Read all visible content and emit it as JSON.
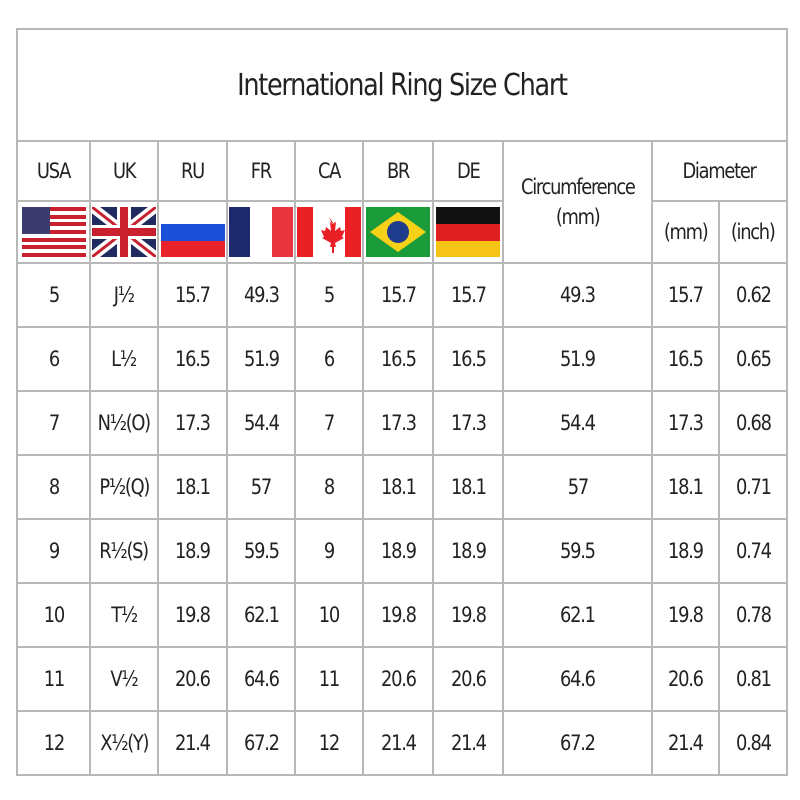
{
  "title": "International Ring Size Chart",
  "columns": {
    "usa": "USA",
    "uk": "UK",
    "ru": "RU",
    "fr": "FR",
    "ca": "CA",
    "br": "BR",
    "de": "DE",
    "circumference": "Circumference",
    "circumference_unit": "(mm)",
    "diameter": "Diameter",
    "diameter_mm": "(mm)",
    "diameter_inch": "(inch)"
  },
  "flags": [
    "usa-flag-icon",
    "uk-flag-icon",
    "russia-flag-icon",
    "france-flag-icon",
    "canada-flag-icon",
    "brazil-flag-icon",
    "germany-flag-icon"
  ],
  "rows": [
    [
      "5",
      "J½",
      "15.7",
      "49.3",
      "5",
      "15.7",
      "15.7",
      "49.3",
      "15.7",
      "0.62"
    ],
    [
      "6",
      "L½",
      "16.5",
      "51.9",
      "6",
      "16.5",
      "16.5",
      "51.9",
      "16.5",
      "0.65"
    ],
    [
      "7",
      "N½(O)",
      "17.3",
      "54.4",
      "7",
      "17.3",
      "17.3",
      "54.4",
      "17.3",
      "0.68"
    ],
    [
      "8",
      "P½(Q)",
      "18.1",
      "57",
      "8",
      "18.1",
      "18.1",
      "57",
      "18.1",
      "0.71"
    ],
    [
      "9",
      "R½(S)",
      "18.9",
      "59.5",
      "9",
      "18.9",
      "18.9",
      "59.5",
      "18.9",
      "0.74"
    ],
    [
      "10",
      "T½",
      "19.8",
      "62.1",
      "10",
      "19.8",
      "19.8",
      "62.1",
      "19.8",
      "0.78"
    ],
    [
      "11",
      "V½",
      "20.6",
      "64.6",
      "11",
      "20.6",
      "20.6",
      "64.6",
      "20.6",
      "0.81"
    ],
    [
      "12",
      "X½(Y)",
      "21.4",
      "67.2",
      "12",
      "21.4",
      "21.4",
      "67.2",
      "21.4",
      "0.84"
    ]
  ],
  "colors": {
    "border": "#b8b8b8",
    "text": "#222222"
  }
}
